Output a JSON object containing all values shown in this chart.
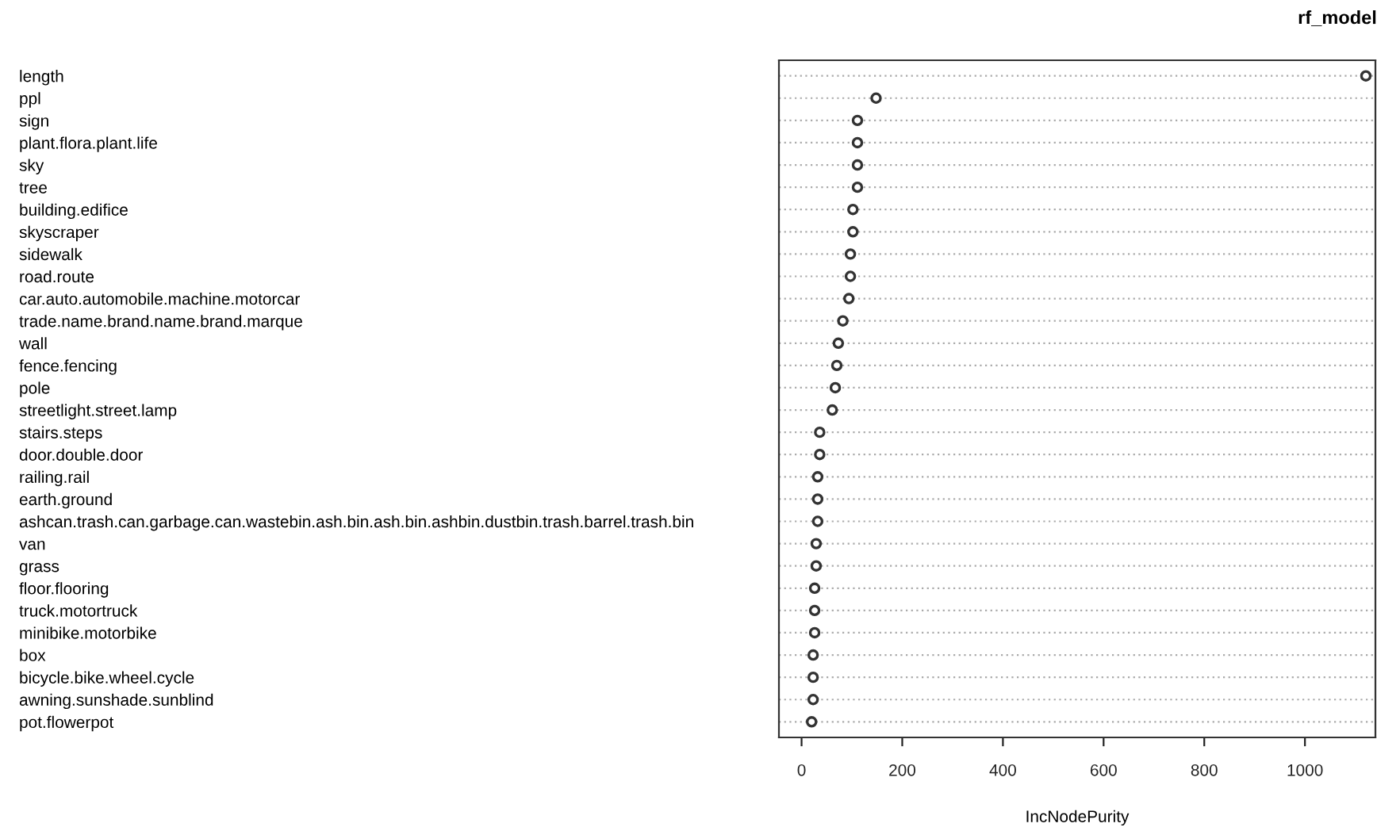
{
  "chart_data": {
    "type": "scatter",
    "title": "rf_model",
    "xlabel": "IncNodePurity",
    "orientation": "horizontal",
    "categories": [
      "length",
      "ppl",
      "sign",
      "plant.flora.plant.life",
      "sky",
      "tree",
      "building.edifice",
      "skyscraper",
      "sidewalk",
      "road.route",
      "car.auto.automobile.machine.motorcar",
      "trade.name.brand.name.brand.marque",
      "wall",
      "fence.fencing",
      "pole",
      "streetlight.street.lamp",
      "stairs.steps",
      "door.double.door",
      "railing.rail",
      "earth.ground",
      "ashcan.trash.can.garbage.can.wastebin.ash.bin.ash.bin.ashbin.dustbin.trash.barrel.trash.bin",
      "van",
      "grass",
      "floor.flooring",
      "truck.motortruck",
      "minibike.motorbike",
      "box",
      "bicycle.bike.wheel.cycle",
      "awning.sunshade.sunblind",
      "pot.flowerpot"
    ],
    "values": [
      1121,
      148,
      111,
      111,
      111,
      111,
      102,
      102,
      97,
      97,
      94,
      82,
      73,
      70,
      67,
      61,
      36,
      36,
      32,
      32,
      32,
      29,
      29,
      26,
      26,
      26,
      23,
      23,
      23,
      20
    ],
    "color": "#333333",
    "marker": "circle",
    "grid": "y",
    "xlim": [
      -45,
      1140
    ],
    "xticks": [
      0,
      200,
      400,
      600,
      800,
      1000
    ]
  }
}
